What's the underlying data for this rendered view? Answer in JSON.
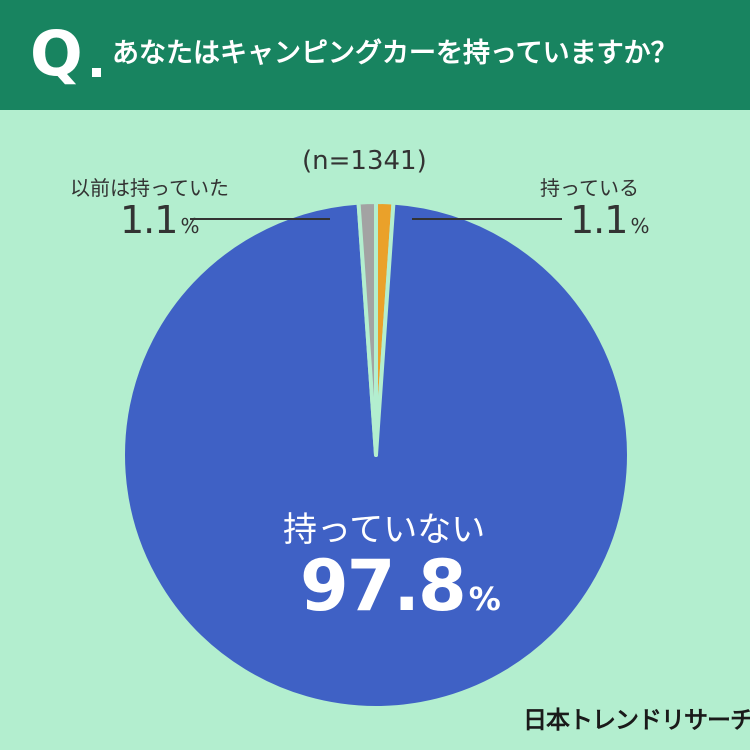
{
  "header": {
    "q_mark": "Q",
    "question": "あなたはキャンピングカーを持っていますか？"
  },
  "sample_size": "(n=1341)",
  "chart_data": {
    "type": "pie",
    "title": "あなたはキャンピングカーを持っていますか？",
    "note": "(n=1341)",
    "slices": [
      {
        "label": "持っている",
        "value": 1.1,
        "display": "1.1",
        "unit": "%",
        "color": "#eaa12a"
      },
      {
        "label": "持っていない",
        "value": 97.8,
        "display": "97.8",
        "unit": "%",
        "color": "#3f61c5"
      },
      {
        "label": "以前は持っていた",
        "value": 1.1,
        "display": "1.1",
        "unit": "%",
        "color": "#a3a3a3"
      }
    ]
  },
  "colors": {
    "background": "#b3eecf",
    "header": "#188460",
    "separator": "#b3eecf"
  },
  "brand": "日本トレンドリサーチ"
}
